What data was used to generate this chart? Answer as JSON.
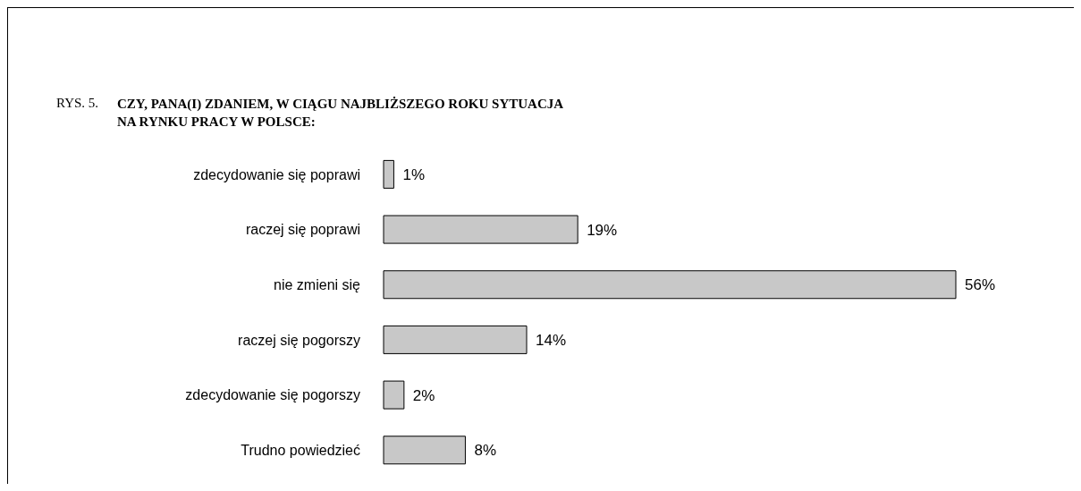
{
  "chart_data": {
    "type": "bar",
    "orientation": "horizontal",
    "title": "CZY, PANA(I) ZDANIEM, W CIĄGU NAJBLIŻSZEGO ROKU SYTUACJA NA RYNKU PRACY W POLSCE:",
    "annotations": [
      "RYS. 5."
    ],
    "categories": [
      "zdecydowanie się poprawi",
      "raczej się poprawi",
      "nie zmieni się",
      "raczej się pogorszy",
      "zdecydowanie się pogorszy",
      "Trudno powiedzieć"
    ],
    "values": [
      1,
      19,
      56,
      14,
      2,
      8
    ],
    "value_labels": [
      "1%",
      "19%",
      "56%",
      "14%",
      "2%",
      "8%"
    ],
    "color": "#c8c8c8",
    "grid": false,
    "legend": false
  }
}
